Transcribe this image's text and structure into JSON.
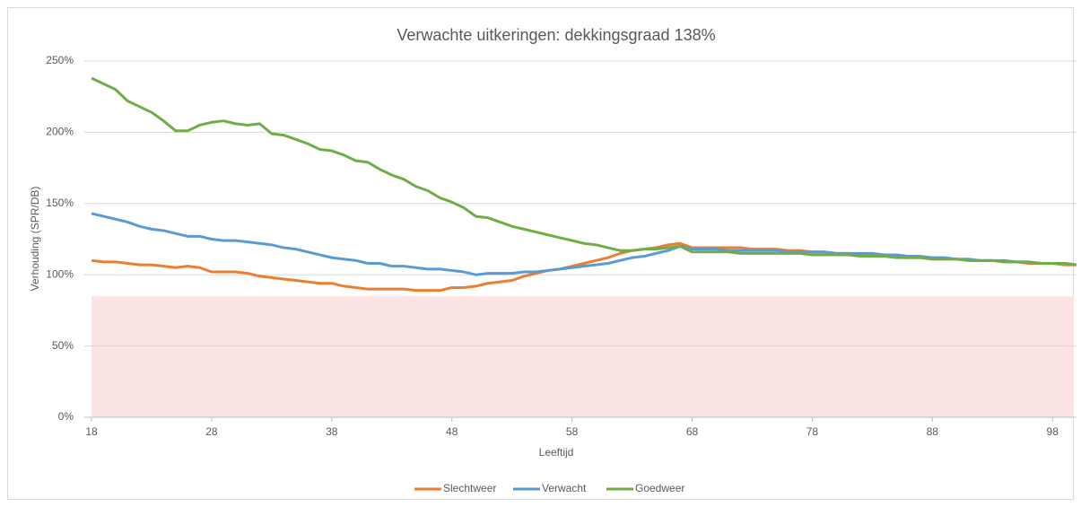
{
  "chart_data": {
    "type": "line",
    "title": "Verwachte uitkeringen: dekkingsgraad 138%",
    "xlabel": "Leeftijd",
    "ylabel": "Verhouding (SPR/DB)",
    "x": [
      18,
      19,
      20,
      21,
      22,
      23,
      24,
      25,
      26,
      27,
      28,
      29,
      30,
      31,
      32,
      33,
      34,
      35,
      36,
      37,
      38,
      39,
      40,
      41,
      42,
      43,
      44,
      45,
      46,
      47,
      48,
      49,
      50,
      51,
      52,
      53,
      54,
      55,
      56,
      57,
      58,
      59,
      60,
      61,
      62,
      63,
      64,
      65,
      66,
      67,
      68,
      69,
      70,
      71,
      72,
      73,
      74,
      75,
      76,
      77,
      78,
      79,
      80,
      81,
      82,
      83,
      84,
      85,
      86,
      87,
      88,
      89,
      90,
      91,
      92,
      93,
      94,
      95,
      96,
      97,
      98,
      99,
      100
    ],
    "series": [
      {
        "name": "Slechtweer",
        "color": "#ed7d31",
        "values": [
          110,
          109,
          109,
          108,
          107,
          107,
          106,
          105,
          106,
          105,
          102,
          102,
          102,
          101,
          99,
          98,
          97,
          96,
          95,
          94,
          94,
          92,
          91,
          90,
          90,
          90,
          90,
          89,
          89,
          89,
          91,
          91,
          92,
          94,
          95,
          96,
          99,
          101,
          103,
          104,
          106,
          108,
          110,
          112,
          115,
          117,
          118,
          119,
          121,
          122,
          119,
          119,
          119,
          119,
          119,
          118,
          118,
          118,
          117,
          117,
          116,
          116,
          115,
          115,
          114,
          114,
          113,
          113,
          112,
          112,
          111,
          111,
          111,
          110,
          110,
          110,
          109,
          109,
          108,
          108,
          108,
          107,
          107
        ]
      },
      {
        "name": "Verwacht",
        "color": "#5b9bd5",
        "values": [
          143,
          141,
          139,
          137,
          134,
          132,
          131,
          129,
          127,
          127,
          125,
          124,
          124,
          123,
          122,
          121,
          119,
          118,
          116,
          114,
          112,
          111,
          110,
          108,
          108,
          106,
          106,
          105,
          104,
          104,
          103,
          102,
          100,
          101,
          101,
          101,
          102,
          102,
          103,
          104,
          105,
          106,
          107,
          108,
          110,
          112,
          113,
          115,
          117,
          120,
          118,
          118,
          118,
          117,
          117,
          117,
          117,
          117,
          116,
          116,
          116,
          116,
          115,
          115,
          115,
          115,
          114,
          114,
          113,
          113,
          112,
          112,
          111,
          111,
          110,
          110,
          110,
          109,
          109,
          108,
          108,
          108,
          107
        ]
      },
      {
        "name": "Goedweer",
        "color": "#70ad47",
        "values": [
          238,
          234,
          230,
          222,
          218,
          214,
          208,
          201,
          201,
          205,
          207,
          208,
          206,
          205,
          206,
          199,
          198,
          195,
          192,
          188,
          187,
          184,
          180,
          179,
          174,
          170,
          167,
          162,
          159,
          154,
          151,
          147,
          141,
          140,
          137,
          134,
          132,
          130,
          128,
          126,
          124,
          122,
          121,
          119,
          117,
          117,
          118,
          118,
          119,
          120,
          116,
          116,
          116,
          116,
          115,
          115,
          115,
          115,
          115,
          115,
          114,
          114,
          114,
          114,
          113,
          113,
          113,
          112,
          112,
          112,
          111,
          111,
          111,
          110,
          110,
          110,
          109,
          109,
          109,
          108,
          108,
          108,
          107
        ]
      }
    ],
    "xlim": [
      18,
      100
    ],
    "xticks": [
      18,
      28,
      38,
      48,
      58,
      68,
      78,
      88,
      98
    ],
    "ylim": [
      0,
      250
    ],
    "yticks": [
      {
        "value": 0,
        "label": "0%"
      },
      {
        "value": 50,
        "label": "50%"
      },
      {
        "value": 100,
        "label": "100%"
      },
      {
        "value": 150,
        "label": "150%"
      },
      {
        "value": 200,
        "label": "200%"
      },
      {
        "value": 250,
        "label": "250%"
      }
    ],
    "grid": true,
    "legend": "bottom",
    "shaded_band": {
      "ylim": [
        0,
        85
      ],
      "color": "#fde4e4"
    }
  }
}
